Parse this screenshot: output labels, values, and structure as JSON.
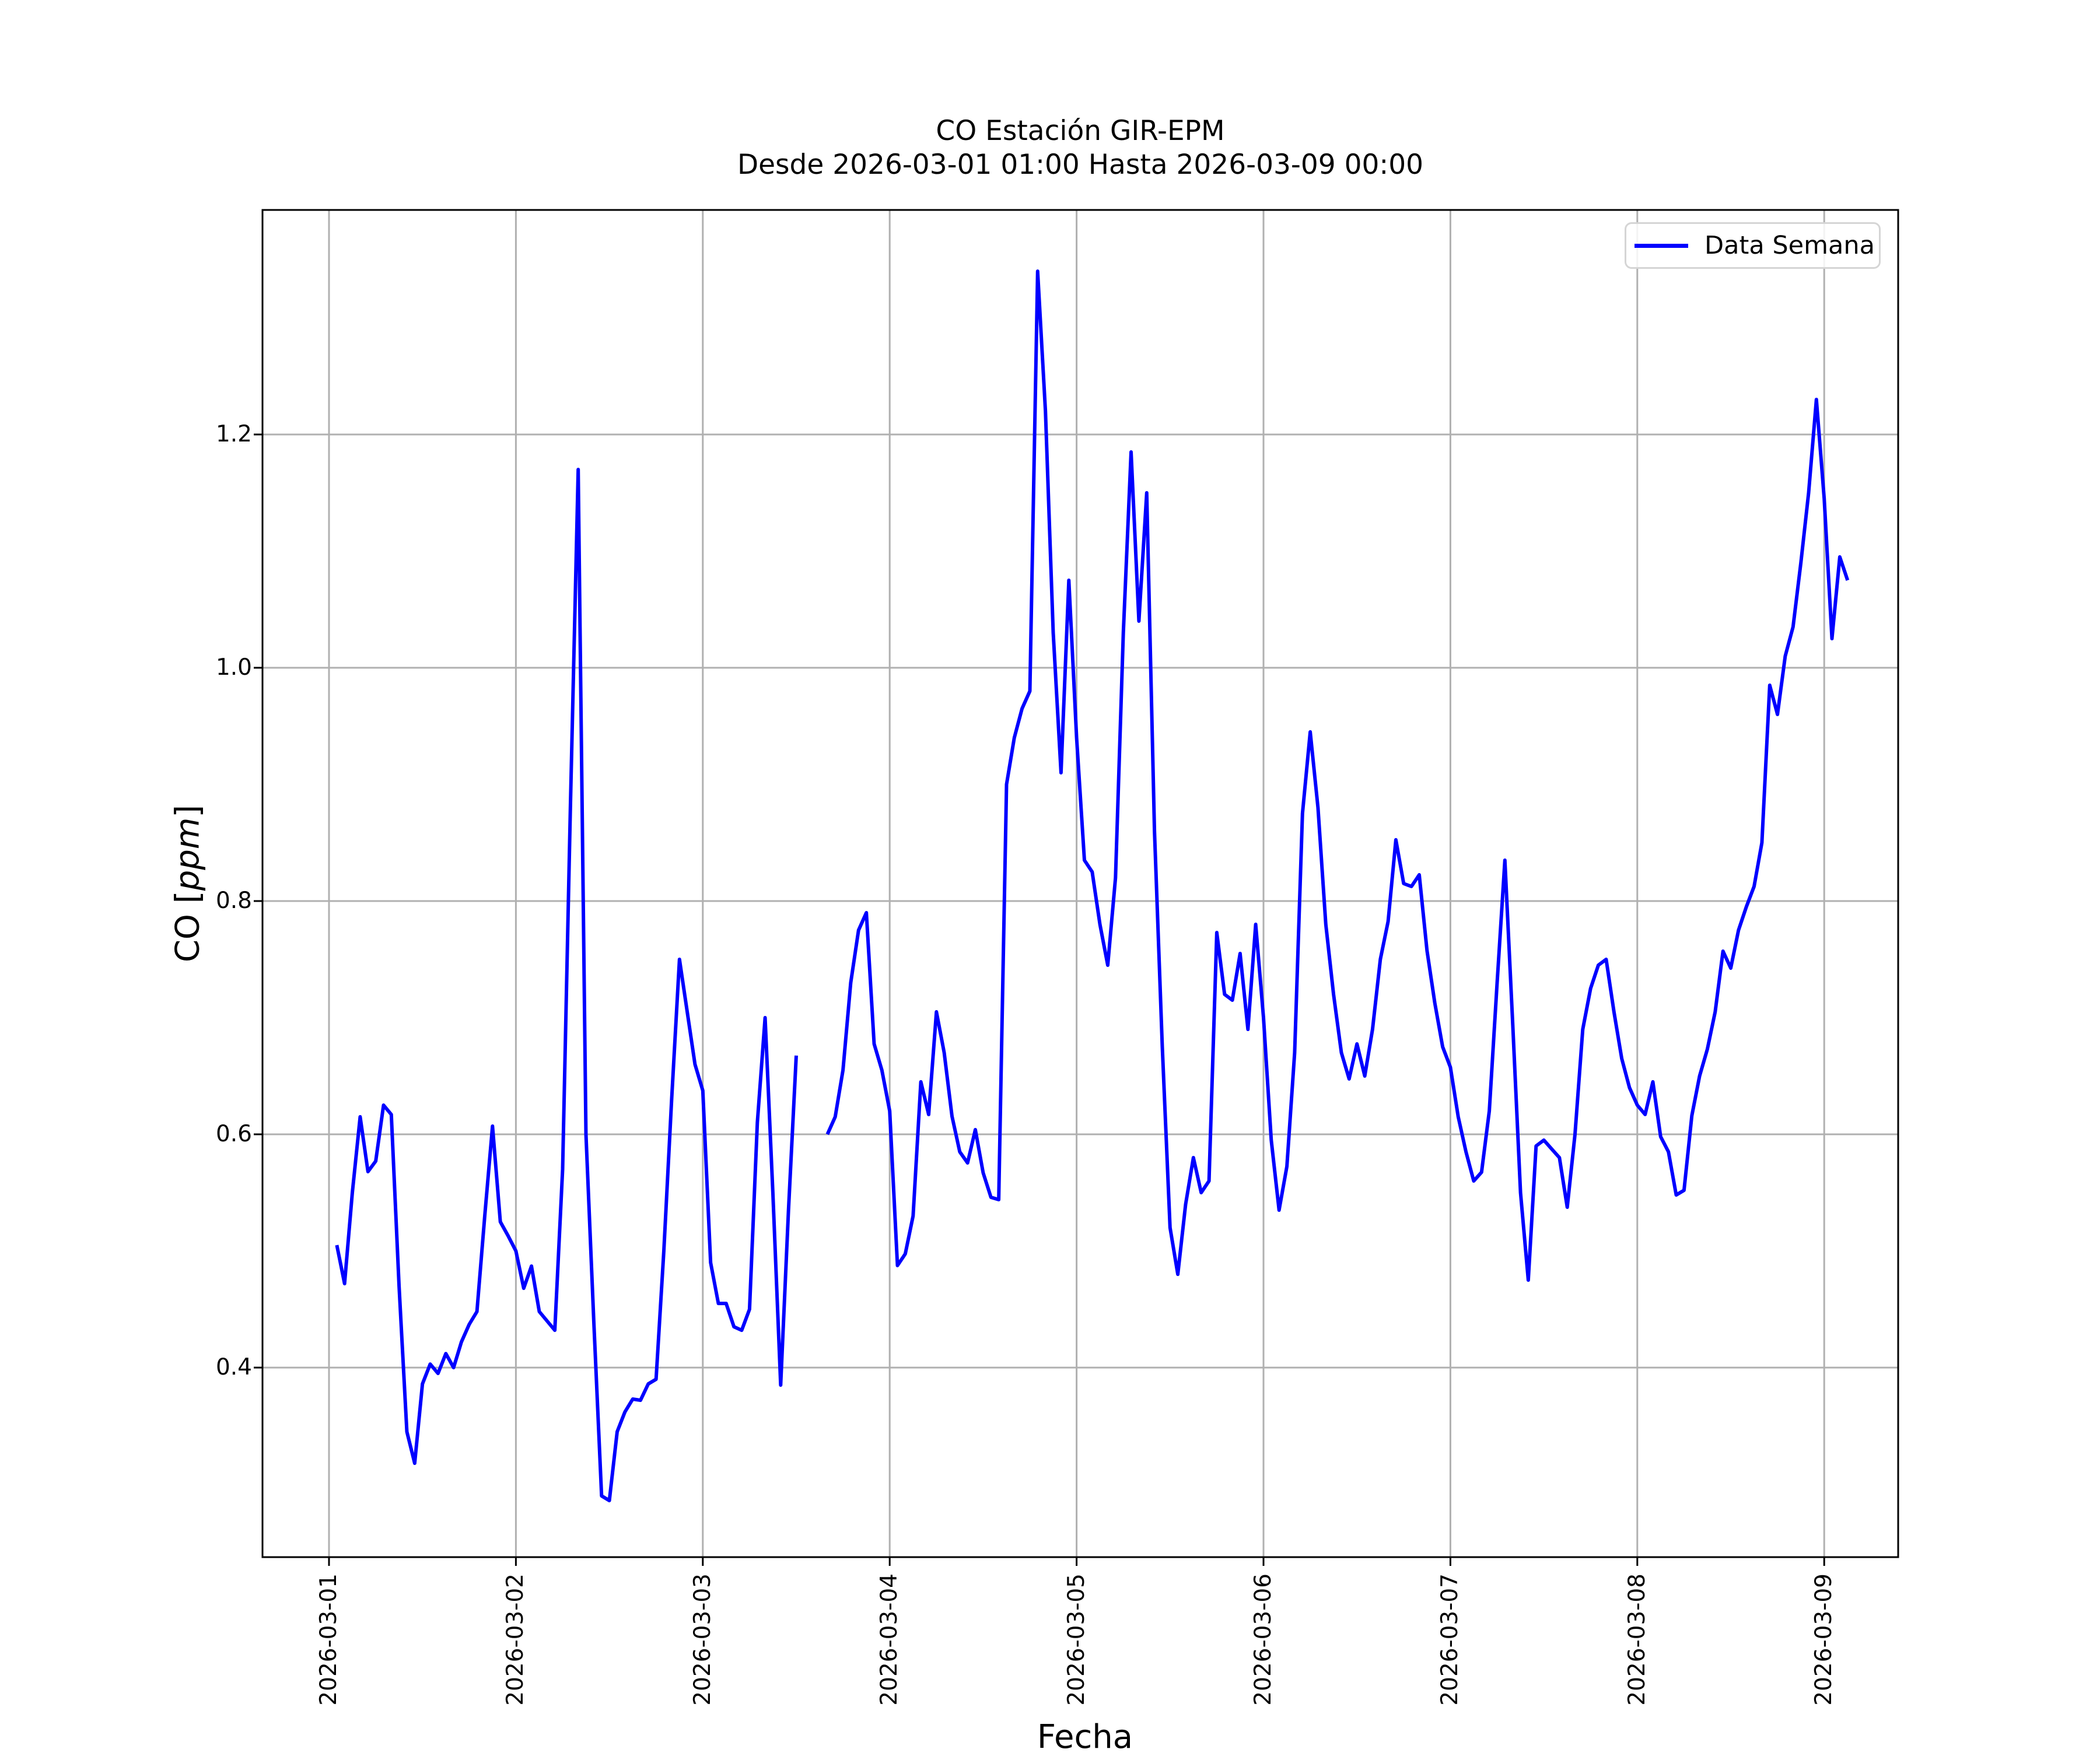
{
  "title": {
    "line1": "CO Estación GIR-EPM",
    "line2": "Desde 2026-03-01 01:00 Hasta 2026-03-09 00:00"
  },
  "legend": {
    "label": "Data Semana",
    "position": "upper right"
  },
  "axes": {
    "xlabel": "Fecha",
    "ylabel": {
      "prefix": "CO [",
      "unit": "ppm",
      "suffix": "]"
    },
    "x_tick_labels": [
      "2026-03-01",
      "2026-03-02",
      "2026-03-03",
      "2026-03-04",
      "2026-03-05",
      "2026-03-06",
      "2026-03-07",
      "2026-03-08",
      "2026-03-09"
    ],
    "y_tick_labels": [
      "0.4",
      "0.6",
      "0.8",
      "1.0",
      "1.2"
    ],
    "grid": true
  },
  "colors": {
    "line": "#0000ff",
    "grid": "#b0b0b0",
    "spine": "#000000",
    "background": "#ffffff",
    "text": "#000000",
    "legend_border": "#d5d5d5"
  },
  "chart_data": {
    "type": "line",
    "series_name": "Data Semana",
    "x_unit": "hours since 2026-03-01 00:00",
    "x_first_hour": 1,
    "x_step_hours": 1,
    "x_day_tick_step_hours": 24,
    "xlim_hours": [
      -8.55,
      201.55
    ],
    "ylim": [
      0.2375,
      1.3925
    ],
    "missing_data_hours": [
      61,
      62,
      63
    ],
    "values": [
      0.505,
      0.472,
      0.55,
      0.615,
      0.568,
      0.577,
      0.625,
      0.617,
      0.47,
      0.345,
      0.318,
      0.386,
      0.403,
      0.395,
      0.412,
      0.4,
      0.422,
      0.437,
      0.448,
      0.53,
      0.607,
      0.525,
      0.513,
      0.5,
      0.468,
      0.487,
      0.448,
      0.44,
      0.432,
      0.57,
      0.88,
      1.17,
      0.6,
      0.44,
      0.29,
      0.286,
      0.345,
      0.362,
      0.373,
      0.372,
      0.386,
      0.39,
      0.5,
      0.63,
      0.75,
      0.705,
      0.66,
      0.6375,
      0.49,
      0.455,
      0.455,
      0.435,
      0.432,
      0.45,
      0.61,
      0.7,
      0.55,
      0.385,
      0.535,
      0.6675,
      null,
      null,
      null,
      0.6,
      0.615,
      0.655,
      0.73,
      0.775,
      0.79,
      0.6775,
      0.655,
      0.62,
      0.4875,
      0.4975,
      0.53,
      0.645,
      0.617,
      0.705,
      0.67,
      0.6155,
      0.585,
      0.5755,
      0.604,
      0.567,
      0.546,
      0.544,
      0.9,
      0.94,
      0.965,
      0.98,
      1.34,
      1.22,
      1.03,
      0.91,
      1.075,
      0.94,
      0.835,
      0.825,
      0.78,
      0.745,
      0.82,
      1.03,
      1.185,
      1.04,
      1.15,
      0.86,
      0.675,
      0.52,
      0.48,
      0.54,
      0.58,
      0.55,
      0.56,
      0.773,
      0.72,
      0.715,
      0.755,
      0.69,
      0.78,
      0.7,
      0.595,
      0.535,
      0.5725,
      0.67,
      0.875,
      0.945,
      0.88,
      0.78,
      0.72,
      0.67,
      0.6475,
      0.6775,
      0.65,
      0.69,
      0.75,
      0.7825,
      0.8525,
      0.815,
      0.8125,
      0.8225,
      0.7575,
      0.7125,
      0.675,
      0.6575,
      0.615,
      0.585,
      0.56,
      0.5675,
      0.62,
      0.73,
      0.835,
      0.695,
      0.55,
      0.475,
      0.59,
      0.595,
      0.5875,
      0.58,
      0.5375,
      0.6,
      0.69,
      0.725,
      0.745,
      0.75,
      0.705,
      0.665,
      0.64,
      0.625,
      0.617,
      0.645,
      0.598,
      0.585,
      0.548,
      0.552,
      0.616,
      0.65,
      0.673,
      0.705,
      0.757,
      0.7425,
      0.775,
      0.795,
      0.8125,
      0.85,
      0.985,
      0.96,
      1.01,
      1.035,
      1.09,
      1.15,
      1.23,
      1.145,
      1.025,
      1.095,
      1.075
    ]
  }
}
